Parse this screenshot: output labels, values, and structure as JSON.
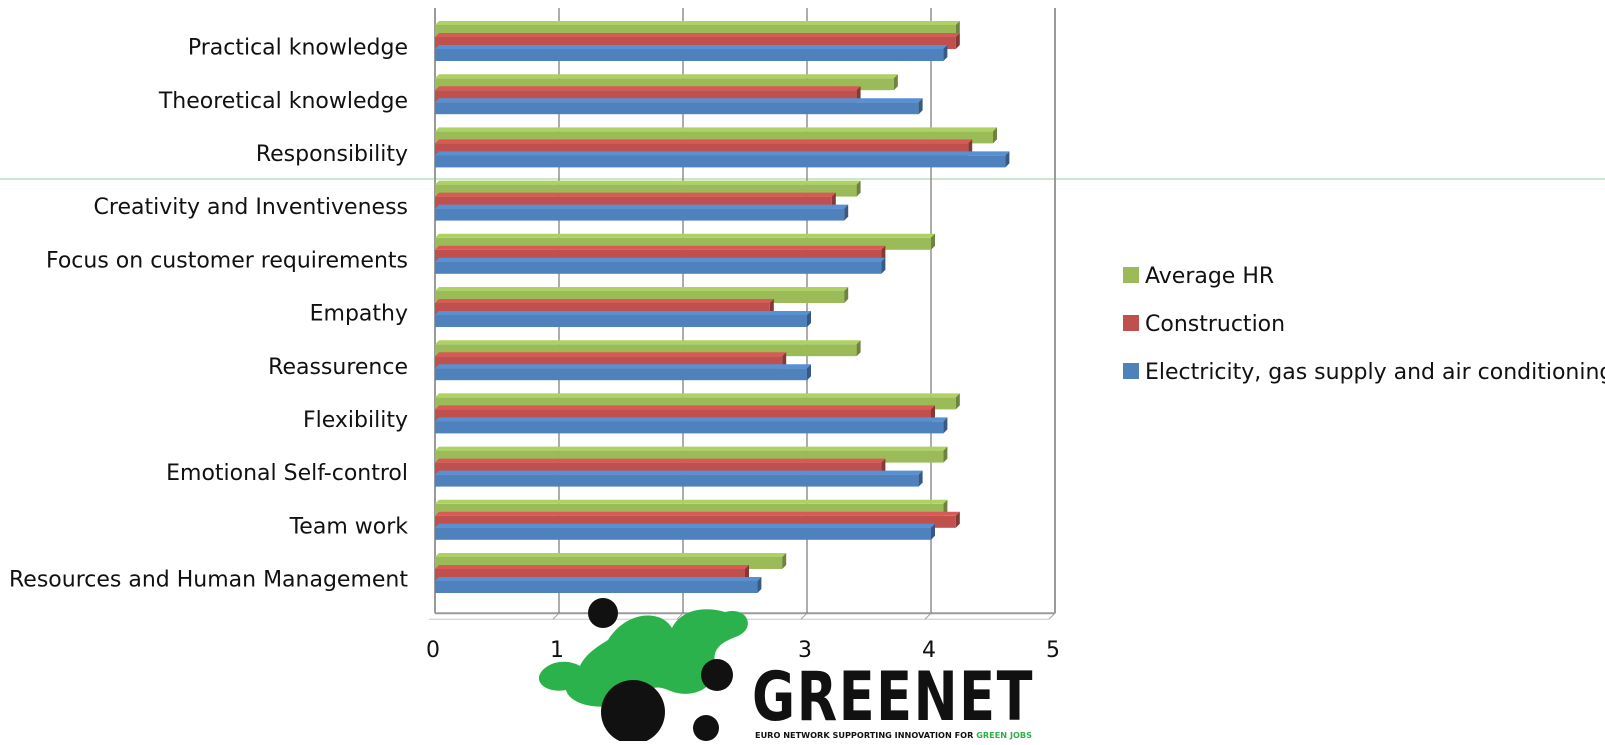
{
  "chart_data": {
    "type": "bar",
    "orientation": "horizontal",
    "categories": [
      "Practical knowledge",
      "Theoretical knowledge",
      "Responsibility",
      "Creativity and Inventiveness",
      "Focus on customer requirements",
      "Empathy",
      "Reassurence",
      "Flexibility",
      "Emotional Self-control",
      "Team work",
      "Resources and Human Management"
    ],
    "series": [
      {
        "name": "Average HR",
        "color": "#9bbb59",
        "values": [
          4.2,
          3.7,
          4.5,
          3.4,
          4.0,
          3.3,
          3.4,
          4.2,
          4.1,
          4.1,
          2.8
        ]
      },
      {
        "name": "Construction",
        "color": "#c0504d",
        "values": [
          4.2,
          3.4,
          4.3,
          3.2,
          3.6,
          2.7,
          2.8,
          4.0,
          3.6,
          4.2,
          2.5
        ]
      },
      {
        "name": "Electricity, gas supply and air conditioning",
        "color": "#4f81bd",
        "values": [
          4.1,
          3.9,
          4.6,
          3.3,
          3.6,
          3.0,
          3.0,
          4.1,
          3.9,
          4.0,
          2.6
        ]
      }
    ],
    "xlim": [
      0,
      5
    ],
    "xticks": [
      "0",
      "1",
      "2",
      "3",
      "4",
      "5"
    ],
    "grid": true,
    "legend_position": "right"
  },
  "logo": {
    "wordmark": "GREENET",
    "tagline_main": "EURO NETWORK SUPPORTING INNOVATION FOR ",
    "tagline_highlight": "GREEN JOBS"
  }
}
